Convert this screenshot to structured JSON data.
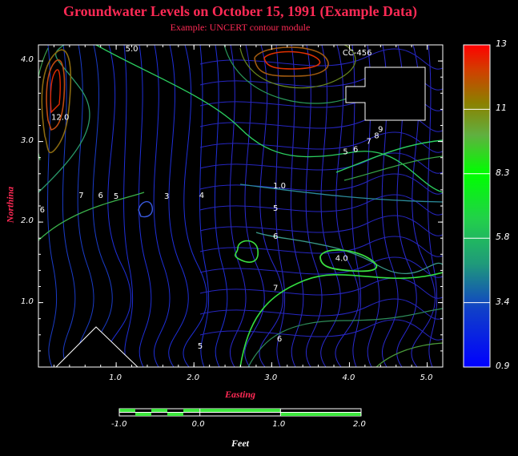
{
  "chart_data": {
    "type": "contour",
    "title": "Groundwater Levels on October 15, 1991 (Example Data)",
    "subtitle": "Example:  UNCERT contour module",
    "xlabel": "Easting",
    "ylabel": "Northina",
    "xlim": [
      0.0,
      5.2
    ],
    "ylim": [
      0.2,
      4.2
    ],
    "x_ticks": [
      "1.0",
      "2.0",
      "3.0",
      "4.0",
      "5.0"
    ],
    "y_ticks": [
      "1.0",
      "2.0",
      "3.0",
      "4.0"
    ],
    "colorbar": {
      "min": 0.9,
      "max": 13,
      "tick_labels": [
        "13",
        "11",
        "8.3",
        "5.8",
        "3.4",
        "0.9"
      ],
      "colors": [
        "#0000ff",
        "#007a8c",
        "#00ff00",
        "#2bc62b",
        "#8c8c00",
        "#ff6a00",
        "#ff0000"
      ]
    },
    "contour_labels": [
      {
        "text": "5.0",
        "x": 1.2,
        "y": 4.15
      },
      {
        "text": "CC-456",
        "x": 4.1,
        "y": 4.1
      },
      {
        "text": "12.0",
        "x": 0.28,
        "y": 3.3
      },
      {
        "text": "9",
        "x": 4.4,
        "y": 3.15
      },
      {
        "text": "8",
        "x": 4.35,
        "y": 3.07
      },
      {
        "text": "7",
        "x": 4.25,
        "y": 3.0
      },
      {
        "text": "6",
        "x": 4.08,
        "y": 2.9
      },
      {
        "text": "5",
        "x": 3.95,
        "y": 2.87
      },
      {
        "text": "1.0",
        "x": 3.1,
        "y": 2.45
      },
      {
        "text": "7",
        "x": 0.55,
        "y": 2.33
      },
      {
        "text": "6",
        "x": 0.8,
        "y": 2.33
      },
      {
        "text": "5",
        "x": 1.0,
        "y": 2.32
      },
      {
        "text": "3",
        "x": 1.65,
        "y": 2.32
      },
      {
        "text": "4",
        "x": 2.1,
        "y": 2.33
      },
      {
        "text": "5",
        "x": 3.05,
        "y": 2.17
      },
      {
        "text": "6",
        "x": 3.05,
        "y": 1.82
      },
      {
        "text": "4.0",
        "x": 3.9,
        "y": 1.55
      },
      {
        "text": "7",
        "x": 3.05,
        "y": 1.18
      },
      {
        "text": "5",
        "x": 2.08,
        "y": 0.46
      },
      {
        "text": "6",
        "x": 3.1,
        "y": 0.55
      },
      {
        "text": "6",
        "x": 0.05,
        "y": 2.15
      }
    ]
  },
  "scale_bar": {
    "label": "Feet",
    "ticks": [
      "-1.0",
      "0.0",
      "1.0",
      "2.0"
    ]
  }
}
